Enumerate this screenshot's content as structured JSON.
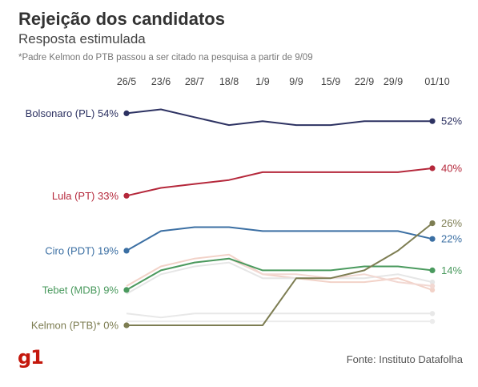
{
  "header": {
    "title": "Rejeição dos candidatos",
    "subtitle": "Resposta estimulada",
    "note": "*Padre Kelmon do PTB passou a ser citado na pesquisa a partir de 9/09"
  },
  "footer": {
    "logo": "g1",
    "source": "Fonte: Instituto Datafolha"
  },
  "chart_data": {
    "type": "line",
    "title": "Rejeição dos candidatos",
    "subtitle": "Resposta estimulada",
    "x": [
      "26/5",
      "23/6",
      "28/7",
      "18/8",
      "1/9",
      "9/9",
      "15/9",
      "22/9",
      "29/9",
      "01/10"
    ],
    "ylim": [
      0,
      60
    ],
    "grid": false,
    "legend": "inline-labels",
    "series": [
      {
        "name": "Bolsonaro (PL)",
        "start_label": "Bolsonaro (PL) 54%",
        "end_label": "52%",
        "color": "#2d3262",
        "values": [
          54,
          55,
          53,
          51,
          52,
          51,
          51,
          52,
          52,
          52
        ]
      },
      {
        "name": "Lula (PT)",
        "start_label": "Lula (PT) 33%",
        "end_label": "40%",
        "color": "#b5283b",
        "values": [
          33,
          35,
          36,
          37,
          39,
          39,
          39,
          39,
          39,
          40
        ]
      },
      {
        "name": "Ciro (PDT)",
        "start_label": "Ciro (PDT) 19%",
        "end_label": "22%",
        "color": "#3b6fa3",
        "values": [
          19,
          24,
          25,
          25,
          24,
          24,
          24,
          24,
          24,
          22
        ]
      },
      {
        "name": "Tebet (MDB)",
        "start_label": "Tebet (MDB) 9%",
        "end_label": "14%",
        "color": "#4a9a5e",
        "values": [
          9,
          14,
          16,
          17,
          14,
          14,
          14,
          15,
          15,
          14
        ]
      },
      {
        "name": "Kelmon (PTB)*",
        "start_label": "Kelmon (PTB)* 0%",
        "end_label": "26%",
        "color": "#7d7d52",
        "values": [
          0,
          0,
          0,
          0,
          0,
          12,
          12,
          14,
          19,
          26
        ]
      }
    ],
    "background_series": [
      {
        "color": "#f2d2c8",
        "values": [
          10,
          15,
          17,
          18,
          13,
          12,
          11,
          11,
          12,
          9
        ]
      },
      {
        "color": "#e6e6e6",
        "values": [
          8,
          13,
          15,
          16,
          12,
          12,
          12,
          12,
          13,
          11
        ]
      },
      {
        "color": "#f2d8d2",
        "values": [
          9,
          14,
          16,
          17,
          13,
          13,
          12,
          13,
          11,
          10
        ]
      },
      {
        "color": "#e8e8e8",
        "values": [
          3,
          2,
          3,
          3,
          3,
          3,
          3,
          3,
          3,
          3
        ]
      },
      {
        "color": "#ececec",
        "values": [
          1,
          1,
          1,
          1,
          1,
          1,
          1,
          1,
          1,
          1
        ]
      }
    ]
  }
}
